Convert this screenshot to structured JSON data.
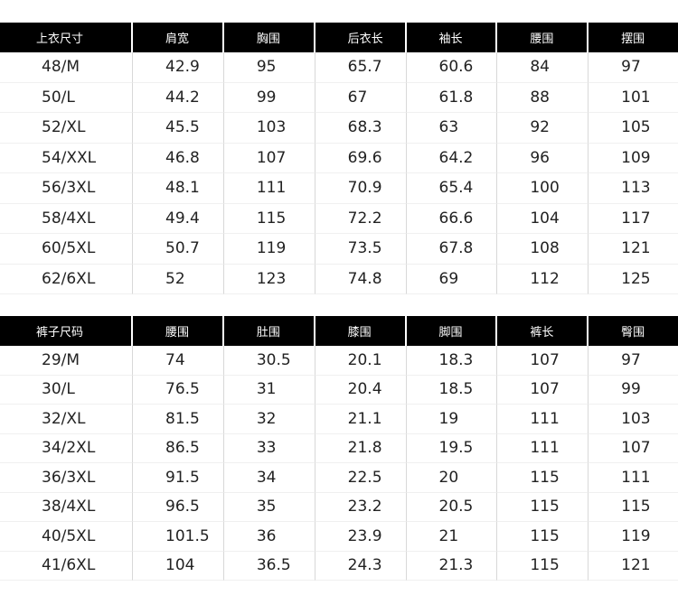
{
  "top_table": {
    "header": [
      "上衣尺寸",
      "肩宽",
      "胸围",
      "后衣长",
      "袖长",
      "腰围",
      "摆围"
    ],
    "rows": [
      [
        "48/M",
        "42.9",
        "95",
        "65.7",
        "60.6",
        "84",
        "97"
      ],
      [
        "50/L",
        "44.2",
        "99",
        "67",
        "61.8",
        "88",
        "101"
      ],
      [
        "52/XL",
        "45.5",
        "103",
        "68.3",
        "63",
        "92",
        "105"
      ],
      [
        "54/XXL",
        "46.8",
        "107",
        "69.6",
        "64.2",
        "96",
        "109"
      ],
      [
        "56/3XL",
        "48.1",
        "111",
        "70.9",
        "65.4",
        "100",
        "113"
      ],
      [
        "58/4XL",
        "49.4",
        "115",
        "72.2",
        "66.6",
        "104",
        "117"
      ],
      [
        "60/5XL",
        "50.7",
        "119",
        "73.5",
        "67.8",
        "108",
        "121"
      ],
      [
        "62/6XL",
        "52",
        "123",
        "74.8",
        "69",
        "112",
        "125"
      ]
    ]
  },
  "bottom_table": {
    "header": [
      "裤子尺码",
      "腰围",
      "肚围",
      "膝围",
      "脚围",
      "裤长",
      "臀围"
    ],
    "rows": [
      [
        "29/M",
        "74",
        "30.5",
        "20.1",
        "18.3",
        "107",
        "97"
      ],
      [
        "30/L",
        "76.5",
        "31",
        "20.4",
        "18.5",
        "107",
        "99"
      ],
      [
        "32/XL",
        "81.5",
        "32",
        "21.1",
        "19",
        "111",
        "103"
      ],
      [
        "34/2XL",
        "86.5",
        "33",
        "21.8",
        "19.5",
        "111",
        "107"
      ],
      [
        "36/3XL",
        "91.5",
        "34",
        "22.5",
        "20",
        "115",
        "111"
      ],
      [
        "38/4XL",
        "96.5",
        "35",
        "23.2",
        "20.5",
        "115",
        "115"
      ],
      [
        "40/5XL",
        "101.5",
        "36",
        "23.9",
        "21",
        "115",
        "119"
      ],
      [
        "41/6XL",
        "104",
        "36.5",
        "24.3",
        "21.3",
        "115",
        "121"
      ]
    ]
  }
}
